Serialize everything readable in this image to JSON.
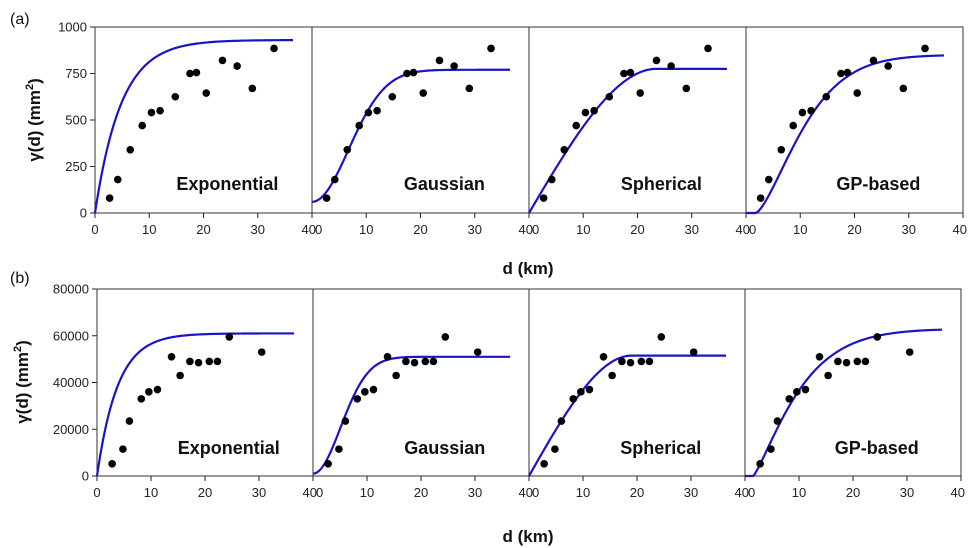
{
  "chart_data": [
    {
      "type": "scatter",
      "panel_label": "(a)",
      "ylabel": "γ(d) (mm",
      "ylabel_sup": "2",
      "ylabel_close": ")",
      "xlabel": "d (km)",
      "xlim": [
        0,
        40
      ],
      "ylim": [
        0,
        1000
      ],
      "xticks": [
        0,
        10,
        20,
        30,
        40
      ],
      "yticks": [
        0,
        250,
        500,
        750,
        1000
      ],
      "points": [
        {
          "x": 2.7,
          "y": 80
        },
        {
          "x": 4.2,
          "y": 180
        },
        {
          "x": 6.5,
          "y": 340
        },
        {
          "x": 8.7,
          "y": 470
        },
        {
          "x": 10.4,
          "y": 540
        },
        {
          "x": 12.0,
          "y": 550
        },
        {
          "x": 14.8,
          "y": 625
        },
        {
          "x": 17.5,
          "y": 750
        },
        {
          "x": 18.7,
          "y": 755
        },
        {
          "x": 20.5,
          "y": 645
        },
        {
          "x": 23.5,
          "y": 820
        },
        {
          "x": 26.2,
          "y": 790
        },
        {
          "x": 29.0,
          "y": 670
        },
        {
          "x": 33.0,
          "y": 885
        }
      ],
      "models": [
        {
          "name": "Exponential",
          "type": "exponential",
          "nugget": 0,
          "sill": 930,
          "range": 14.5
        },
        {
          "name": "Gaussian",
          "type": "gaussian",
          "nugget": 60,
          "sill": 770,
          "range": 9.5
        },
        {
          "name": "Spherical",
          "type": "spherical",
          "nugget": 0,
          "sill": 775,
          "range": 23.5
        },
        {
          "name": "GP-based",
          "type": "gp",
          "sill": 850,
          "scale": 10.5,
          "shape": 1.45,
          "offset": 1.8
        }
      ]
    },
    {
      "type": "scatter",
      "panel_label": "(b)",
      "ylabel": "γ(d) (mm",
      "ylabel_sup": "2",
      "ylabel_close": ")",
      "xlabel": "d (km)",
      "xlim": [
        0,
        40
      ],
      "ylim": [
        0,
        80000
      ],
      "xticks": [
        0,
        10,
        20,
        30,
        40
      ],
      "yticks": [
        0,
        20000,
        40000,
        60000,
        80000
      ],
      "points": [
        {
          "x": 2.8,
          "y": 5200
        },
        {
          "x": 4.8,
          "y": 11500
        },
        {
          "x": 6.0,
          "y": 23500
        },
        {
          "x": 8.2,
          "y": 33000
        },
        {
          "x": 9.6,
          "y": 36000
        },
        {
          "x": 11.2,
          "y": 37000
        },
        {
          "x": 13.8,
          "y": 51000
        },
        {
          "x": 15.4,
          "y": 43000
        },
        {
          "x": 17.2,
          "y": 49000
        },
        {
          "x": 18.8,
          "y": 48500
        },
        {
          "x": 20.8,
          "y": 49000
        },
        {
          "x": 22.3,
          "y": 49000
        },
        {
          "x": 24.5,
          "y": 59500
        },
        {
          "x": 30.5,
          "y": 53000
        }
      ],
      "models": [
        {
          "name": "Exponential",
          "type": "exponential",
          "nugget": 0,
          "sill": 61000,
          "range": 11.5
        },
        {
          "name": "Gaussian",
          "type": "gaussian",
          "nugget": 1000,
          "sill": 51000,
          "range": 7.2
        },
        {
          "name": "Spherical",
          "type": "spherical",
          "nugget": 0,
          "sill": 51500,
          "range": 19.0
        },
        {
          "name": "GP-based",
          "type": "gp",
          "sill": 63000,
          "scale": 9.5,
          "shape": 1.25,
          "offset": 1.5
        }
      ]
    }
  ]
}
